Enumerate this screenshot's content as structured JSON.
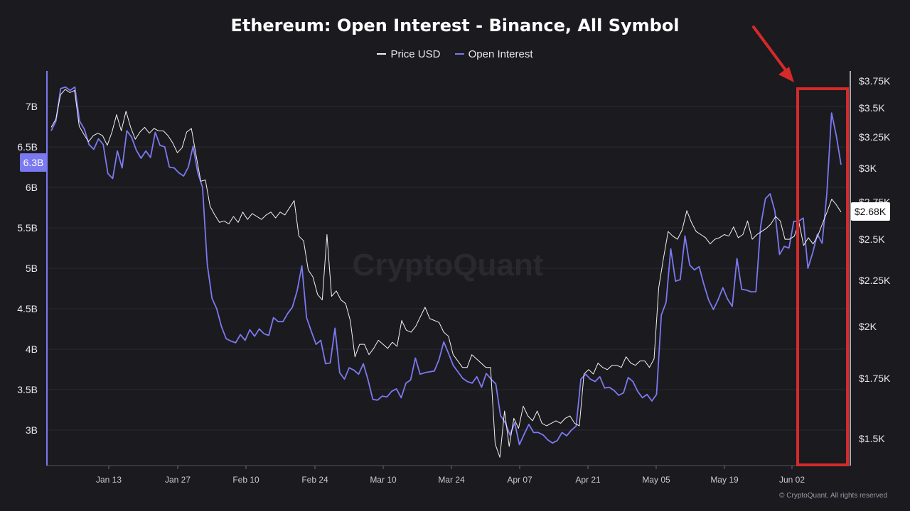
{
  "chart_data": {
    "type": "line",
    "title": "Ethereum: Open Interest - Binance, All Symbol",
    "legend_position": "top-center",
    "grid": true,
    "x_tick_labels": [
      "Jan 13",
      "Jan 27",
      "Feb 10",
      "Feb 24",
      "Mar 10",
      "Mar 24",
      "Apr 07",
      "Apr 21",
      "May 05",
      "May 19",
      "Jun 02"
    ],
    "left_axis": {
      "tick_labels": [
        "3B",
        "3.5B",
        "4B",
        "4.5B",
        "5B",
        "5.5B",
        "6B",
        "6.5B",
        "7B"
      ],
      "ylim": [
        2.58,
        7.45
      ],
      "unit": "B"
    },
    "right_axis": {
      "tick_labels": [
        "$1.5K",
        "$1.75K",
        "$2K",
        "$2.25K",
        "$2.5K",
        "$2.75K",
        "$3K",
        "$3.25K",
        "$3.5K",
        "$3.75K"
      ],
      "scale": "log",
      "ylim": [
        1.4,
        3.78
      ],
      "unit": "K USD"
    },
    "series": [
      {
        "name": "Price USD",
        "color": "#f2f2f2",
        "axis": "right",
        "values": [
          3.33,
          3.4,
          3.62,
          3.67,
          3.64,
          3.66,
          3.34,
          3.27,
          3.21,
          3.26,
          3.28,
          3.26,
          3.18,
          3.29,
          3.44,
          3.3,
          3.47,
          3.33,
          3.23,
          3.29,
          3.33,
          3.28,
          3.32,
          3.3,
          3.3,
          3.26,
          3.2,
          3.12,
          3.16,
          3.29,
          3.32,
          3.1,
          2.9,
          2.91,
          2.72,
          2.66,
          2.61,
          2.62,
          2.6,
          2.65,
          2.61,
          2.68,
          2.63,
          2.67,
          2.65,
          2.63,
          2.66,
          2.68,
          2.64,
          2.68,
          2.66,
          2.71,
          2.76,
          2.52,
          2.49,
          2.31,
          2.27,
          2.17,
          2.14,
          2.53,
          2.16,
          2.19,
          2.14,
          2.12,
          2.03,
          1.85,
          1.91,
          1.91,
          1.86,
          1.89,
          1.93,
          1.91,
          1.89,
          1.92,
          1.9,
          2.03,
          1.98,
          1.97,
          2.0,
          2.05,
          2.1,
          2.04,
          2.03,
          2.02,
          1.97,
          1.95,
          1.86,
          1.83,
          1.8,
          1.8,
          1.86,
          1.84,
          1.82,
          1.8,
          1.8,
          1.48,
          1.43,
          1.61,
          1.47,
          1.58,
          1.54,
          1.63,
          1.59,
          1.57,
          1.61,
          1.56,
          1.55,
          1.56,
          1.57,
          1.56,
          1.58,
          1.59,
          1.56,
          1.55,
          1.77,
          1.79,
          1.77,
          1.82,
          1.8,
          1.79,
          1.81,
          1.81,
          1.8,
          1.85,
          1.82,
          1.81,
          1.83,
          1.83,
          1.8,
          1.84,
          2.21,
          2.38,
          2.55,
          2.52,
          2.5,
          2.56,
          2.69,
          2.61,
          2.55,
          2.53,
          2.51,
          2.47,
          2.5,
          2.51,
          2.53,
          2.52,
          2.58,
          2.51,
          2.53,
          2.62,
          2.5,
          2.53,
          2.55,
          2.57,
          2.6,
          2.65,
          2.62,
          2.5,
          2.5,
          2.52,
          2.61,
          2.46,
          2.51,
          2.47,
          2.52,
          2.6,
          2.68,
          2.77,
          2.73,
          2.68
        ]
      },
      {
        "name": "Open Interest",
        "color": "#7b79ef",
        "axis": "left",
        "values": [
          6.7,
          6.82,
          7.22,
          7.24,
          7.2,
          7.24,
          6.82,
          6.72,
          6.53,
          6.47,
          6.6,
          6.53,
          6.17,
          6.11,
          6.45,
          6.24,
          6.7,
          6.62,
          6.46,
          6.36,
          6.45,
          6.37,
          6.68,
          6.52,
          6.5,
          6.25,
          6.24,
          6.18,
          6.14,
          6.25,
          6.51,
          6.18,
          6.0,
          5.05,
          4.63,
          4.5,
          4.28,
          4.13,
          4.1,
          4.08,
          4.18,
          4.11,
          4.24,
          4.16,
          4.25,
          4.19,
          4.17,
          4.39,
          4.34,
          4.34,
          4.44,
          4.52,
          4.72,
          5.03,
          4.39,
          4.22,
          4.06,
          4.11,
          3.82,
          3.83,
          4.26,
          3.71,
          3.63,
          3.77,
          3.74,
          3.69,
          3.82,
          3.62,
          3.38,
          3.37,
          3.42,
          3.41,
          3.48,
          3.51,
          3.4,
          3.58,
          3.62,
          3.89,
          3.69,
          3.71,
          3.72,
          3.73,
          3.87,
          4.09,
          3.95,
          3.8,
          3.72,
          3.64,
          3.6,
          3.58,
          3.66,
          3.53,
          3.7,
          3.63,
          3.57,
          3.18,
          3.09,
          2.94,
          3.09,
          2.82,
          2.95,
          3.07,
          2.97,
          2.97,
          2.94,
          2.88,
          2.84,
          2.87,
          2.97,
          2.93,
          3.0,
          3.05,
          3.63,
          3.69,
          3.63,
          3.6,
          3.66,
          3.52,
          3.53,
          3.49,
          3.43,
          3.46,
          3.65,
          3.6,
          3.48,
          3.4,
          3.44,
          3.36,
          3.44,
          4.42,
          4.58,
          5.24,
          4.84,
          4.86,
          5.4,
          5.04,
          4.98,
          5.02,
          4.8,
          4.61,
          4.49,
          4.61,
          4.76,
          4.62,
          4.53,
          5.12,
          4.74,
          4.73,
          4.71,
          4.71,
          5.52,
          5.86,
          5.92,
          5.71,
          5.17,
          5.27,
          5.25,
          5.58,
          5.58,
          5.62,
          5.0,
          5.19,
          5.42,
          5.31,
          5.92,
          6.92,
          6.64,
          6.28
        ]
      }
    ],
    "current_value_labels": {
      "open_interest": "6.3B",
      "price": "$2.68K"
    },
    "watermark": "CryptoQuant",
    "annotation": "red arrow pointing to red rectangle highlighting recent rise in June"
  },
  "copyright": "© CryptoQuant. All rights reserved",
  "colors": {
    "background": "#1b1a1f",
    "open_interest": "#7b79ef",
    "price": "#f2f2f2",
    "highlight": "#d42a2a",
    "grid": "#2c2b33"
  }
}
